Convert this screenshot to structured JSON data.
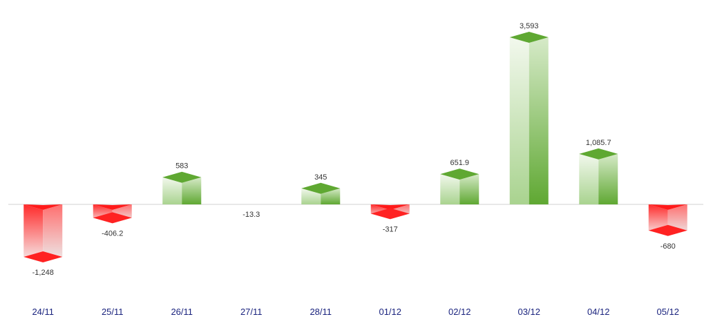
{
  "chart_data": {
    "type": "bar",
    "style": "3d-box",
    "categories": [
      "24/11",
      "25/11",
      "26/11",
      "27/11",
      "28/11",
      "01/12",
      "02/12",
      "03/12",
      "04/12",
      "05/12"
    ],
    "values": [
      -1248,
      -406.2,
      583,
      -13.3,
      345,
      -317,
      651.9,
      3593,
      1085.7,
      -680
    ],
    "data_labels": [
      "-1,248",
      "-406.2",
      "583",
      "-13.3",
      "345",
      "-317",
      "651.9",
      "3,593",
      "1,085.7",
      "-680"
    ],
    "title": "",
    "xlabel": "",
    "ylabel": "",
    "ylim": [
      -1248,
      3593
    ],
    "grid": false,
    "legend": "none",
    "colors": {
      "positive": "#5fa832",
      "positive_light": "#eef6e8",
      "negative": "#ff1a1a",
      "negative_light": "#f2f2f2",
      "axis_line": "#d0d0d0",
      "tick_label": "#1a237e",
      "value_label": "#333333"
    }
  }
}
